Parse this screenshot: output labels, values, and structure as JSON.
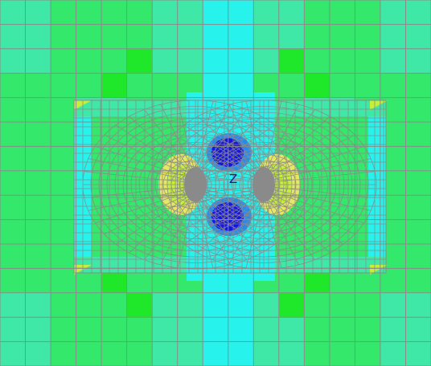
{
  "viewport": {
    "axis_label": "Z",
    "colors": {
      "green": "#33e86a",
      "green_bright": "#1fe82a",
      "spring": "#3fe8a6",
      "cyan": "#27f2ec",
      "cyan_light": "#35f6f2",
      "blue": "#1416e0",
      "blue_mid": "#2a8ae8",
      "yellow_green": "#c6ee3a",
      "yellow": "#e6e860",
      "mesh_line": "#8a8a8a",
      "background": "#ffffff"
    }
  }
}
